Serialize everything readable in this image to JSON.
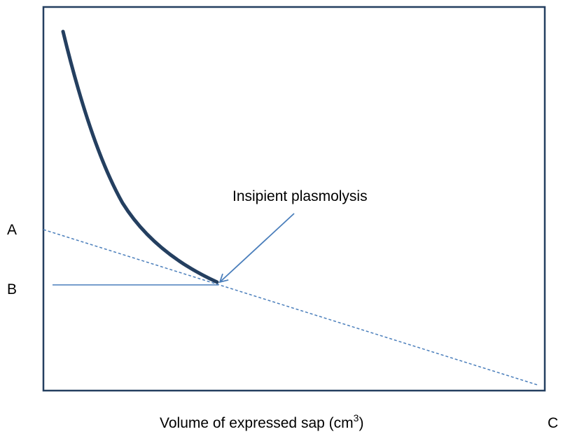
{
  "diagram": {
    "annotation": "Insipient plasmolysis",
    "point_a": "A",
    "point_b": "B",
    "point_c": "C",
    "x_axis_label": {
      "text": "Volume of expressed sap (cm",
      "superscript": "3",
      "closing": ")"
    }
  }
}
